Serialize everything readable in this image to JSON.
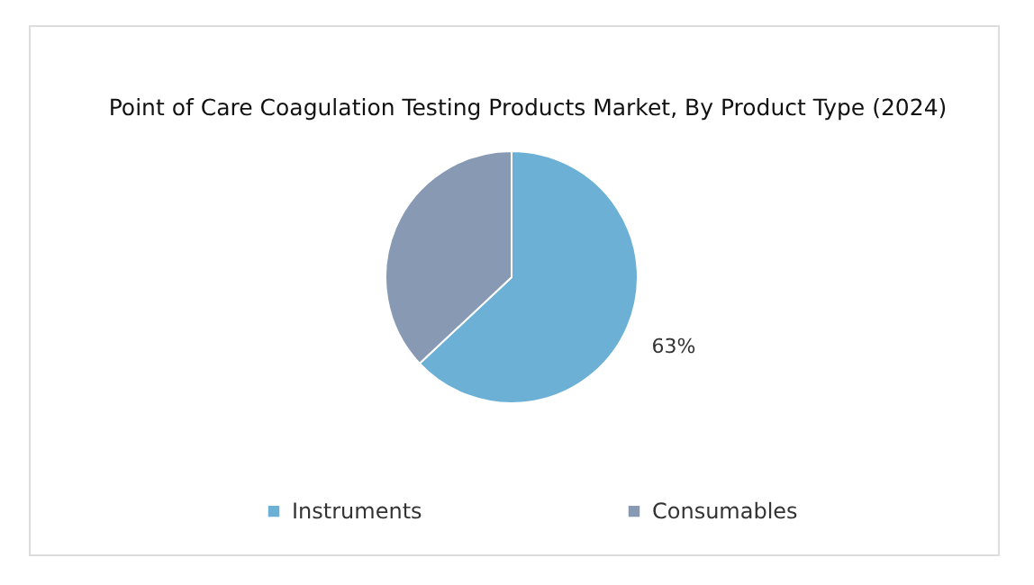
{
  "chart_data": {
    "type": "pie",
    "title": "Point of Care Coagulation Testing Products Market, By Product Type (2024)",
    "categories": [
      "Instruments",
      "Consumables"
    ],
    "values": [
      63,
      37
    ],
    "colors": [
      "#6cb0d6",
      "#8799b3"
    ],
    "value_labels": [
      "63%",
      null
    ],
    "legend": "bottom"
  }
}
